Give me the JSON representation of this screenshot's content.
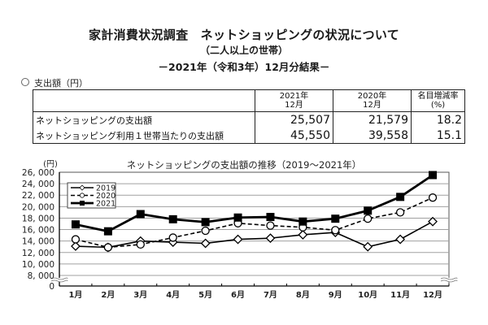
{
  "header": {
    "title": "家計消費状況調査　ネットショッピングの状況について",
    "subtitle": "（二人以上の世帯）",
    "period": "－2021年（令和3年）12月分結果－"
  },
  "section": {
    "label": "支出額（円）"
  },
  "table": {
    "columns": [
      {
        "line1": "",
        "line2": ""
      },
      {
        "line1": "2021年",
        "line2": "12月"
      },
      {
        "line1": "2020年",
        "line2": "12月"
      },
      {
        "line1": "名目増減率",
        "line2": "(%)"
      }
    ],
    "rows": [
      {
        "label": "ネットショッピングの支出額",
        "v2021": "25,507",
        "v2020": "21,579",
        "rate": "18.2"
      },
      {
        "label": "ネットショッピング利用１世帯当たりの支出額",
        "v2021": "45,550",
        "v2020": "39,558",
        "rate": "15.1"
      }
    ]
  },
  "chart_data": {
    "type": "line",
    "title": "ネットショッピングの支出額の推移（2019～2021年）",
    "ylabel": "(円)",
    "xlabel": "",
    "categories": [
      "1月",
      "2月",
      "3月",
      "4月",
      "5月",
      "6月",
      "7月",
      "8月",
      "9月",
      "10月",
      "11月",
      "12月"
    ],
    "ylim": [
      0,
      26000
    ],
    "axis_break": [
      0,
      8000
    ],
    "yticks": [
      0,
      8000,
      10000,
      12000,
      14000,
      16000,
      18000,
      20000,
      22000,
      24000,
      26000
    ],
    "ytick_labels": [
      "0",
      "8, 000",
      "10, 000",
      "12, 000",
      "14, 000",
      "16, 000",
      "18, 000",
      "20, 000",
      "22, 000",
      "24, 000",
      "26, 000"
    ],
    "grid": true,
    "legend_position": "top-left",
    "series": [
      {
        "name": "2019",
        "style": "solid",
        "marker": "diamond-open",
        "values": [
          13100,
          12900,
          14000,
          13800,
          13600,
          14300,
          14500,
          15100,
          15500,
          13000,
          14300,
          17400
        ]
      },
      {
        "name": "2020",
        "style": "dashed",
        "marker": "circle-open",
        "values": [
          14300,
          12900,
          13400,
          14600,
          15800,
          17100,
          16700,
          16400,
          15900,
          17900,
          19000,
          21579
        ]
      },
      {
        "name": "2021",
        "style": "solid-bold",
        "marker": "square-filled",
        "values": [
          16900,
          15700,
          18700,
          17800,
          17300,
          18100,
          18200,
          17400,
          17900,
          19300,
          21700,
          25507
        ]
      }
    ],
    "colors": {
      "line": "#000000",
      "grid": "#a0a0a0",
      "axis": "#000000"
    }
  }
}
